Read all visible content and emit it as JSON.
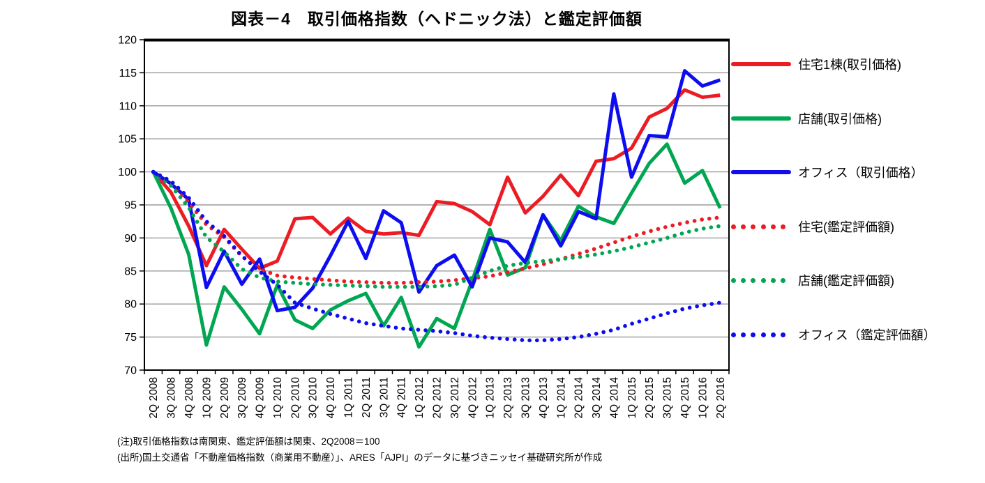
{
  "notes": {
    "line1": "(注)取引価格指数は南関東、鑑定評価額は関東、2Q2008＝100",
    "line2": "(出所)国土交通省「不動産価格指数（商業用不動産）」、ARES「AJPI」のデータに基づきニッセイ基礎研究所が作成"
  },
  "chart_data": {
    "type": "line",
    "title": "図表－4　取引価格指数（ヘドニック法）と鑑定評価額",
    "ylim": [
      70,
      120
    ],
    "ytick_step": 5,
    "grid": true,
    "legend_position": "right",
    "grid_color": "#9a9a9a",
    "axis_color": "#000000",
    "categories": [
      "2Q 2008",
      "3Q 2008",
      "4Q 2008",
      "1Q 2009",
      "2Q 2009",
      "3Q 2009",
      "4Q 2009",
      "1Q 2010",
      "2Q 2010",
      "3Q 2010",
      "4Q 2010",
      "1Q 2011",
      "2Q 2011",
      "3Q 2011",
      "4Q 2011",
      "1Q 2012",
      "2Q 2012",
      "3Q 2012",
      "4Q 2012",
      "1Q 2013",
      "2Q 2013",
      "3Q 2013",
      "4Q 2013",
      "1Q 2014",
      "2Q 2014",
      "3Q 2014",
      "4Q 2014",
      "1Q 2015",
      "2Q 2015",
      "3Q 2015",
      "4Q 2015",
      "1Q 2016",
      "2Q 2016"
    ],
    "series": [
      {
        "name": "住宅1棟(取引価格)",
        "color": "#ec1c24",
        "style": "solid",
        "values": [
          100,
          96.9,
          91.8,
          85.8,
          91.3,
          88.3,
          85.4,
          86.5,
          92.9,
          93.1,
          90.6,
          93.0,
          91.0,
          90.6,
          90.8,
          90.4,
          95.5,
          95.2,
          94.0,
          92.0,
          99.2,
          93.8,
          96.3,
          99.5,
          96.4,
          101.6,
          102.0,
          103.6,
          108.3,
          109.6,
          112.4,
          111.3,
          111.6
        ]
      },
      {
        "name": "店舗(取引価格)",
        "color": "#00a651",
        "style": "solid",
        "values": [
          100,
          94.5,
          87.5,
          73.8,
          82.6,
          79.2,
          75.5,
          82.9,
          77.6,
          76.3,
          79.1,
          80.5,
          81.6,
          76.7,
          81.0,
          73.5,
          77.8,
          76.3,
          83.5,
          91.3,
          84.4,
          85.5,
          93.5,
          89.6,
          94.8,
          93.2,
          92.2,
          96.8,
          101.3,
          104.2,
          98.3,
          100.2,
          94.5
        ]
      },
      {
        "name": "オフィス（取引価格）",
        "color": "#0d0df0",
        "style": "solid",
        "values": [
          100,
          98.2,
          95.8,
          82.5,
          88.0,
          83.0,
          86.8,
          79.0,
          79.5,
          82.4,
          87.3,
          92.5,
          86.9,
          94.1,
          92.3,
          81.8,
          85.8,
          87.4,
          82.6,
          90.0,
          89.4,
          86.3,
          93.5,
          88.8,
          94.0,
          92.9,
          111.8,
          99.2,
          105.5,
          105.3,
          115.3,
          113.0,
          113.9
        ]
      },
      {
        "name": "住宅(鑑定評価額)",
        "color": "#ec1c24",
        "style": "dotted",
        "values": [
          100,
          98.4,
          95.4,
          92.0,
          90.1,
          87.2,
          85.3,
          84.3,
          84.0,
          83.8,
          83.6,
          83.4,
          83.3,
          83.2,
          83.2,
          83.3,
          83.4,
          83.6,
          83.9,
          84.2,
          84.8,
          85.4,
          86.0,
          86.8,
          87.6,
          88.4,
          89.3,
          90.2,
          91.0,
          91.7,
          92.3,
          92.8,
          93.1
        ]
      },
      {
        "name": "店舗(鑑定評価額)",
        "color": "#00a651",
        "style": "dotted",
        "values": [
          100,
          97.9,
          94.6,
          90.1,
          87.9,
          85.3,
          84.0,
          83.4,
          83.2,
          83.0,
          82.9,
          82.8,
          82.7,
          82.6,
          82.6,
          82.6,
          82.7,
          82.9,
          84.0,
          85.0,
          85.8,
          86.2,
          86.5,
          86.8,
          87.1,
          87.5,
          88.0,
          88.6,
          89.3,
          90.0,
          90.8,
          91.4,
          91.8
        ]
      },
      {
        "name": "オフィス（鑑定評価額）",
        "color": "#0d0df0",
        "style": "dotted",
        "values": [
          100,
          98.6,
          96.1,
          92.5,
          90.3,
          87.3,
          84.9,
          82.9,
          80.2,
          79.3,
          78.5,
          77.8,
          77.1,
          76.7,
          76.3,
          76.1,
          75.9,
          75.6,
          75.2,
          74.9,
          74.7,
          74.5,
          74.5,
          74.7,
          75.0,
          75.5,
          76.1,
          77.0,
          77.8,
          78.6,
          79.3,
          79.8,
          80.2
        ]
      }
    ]
  }
}
